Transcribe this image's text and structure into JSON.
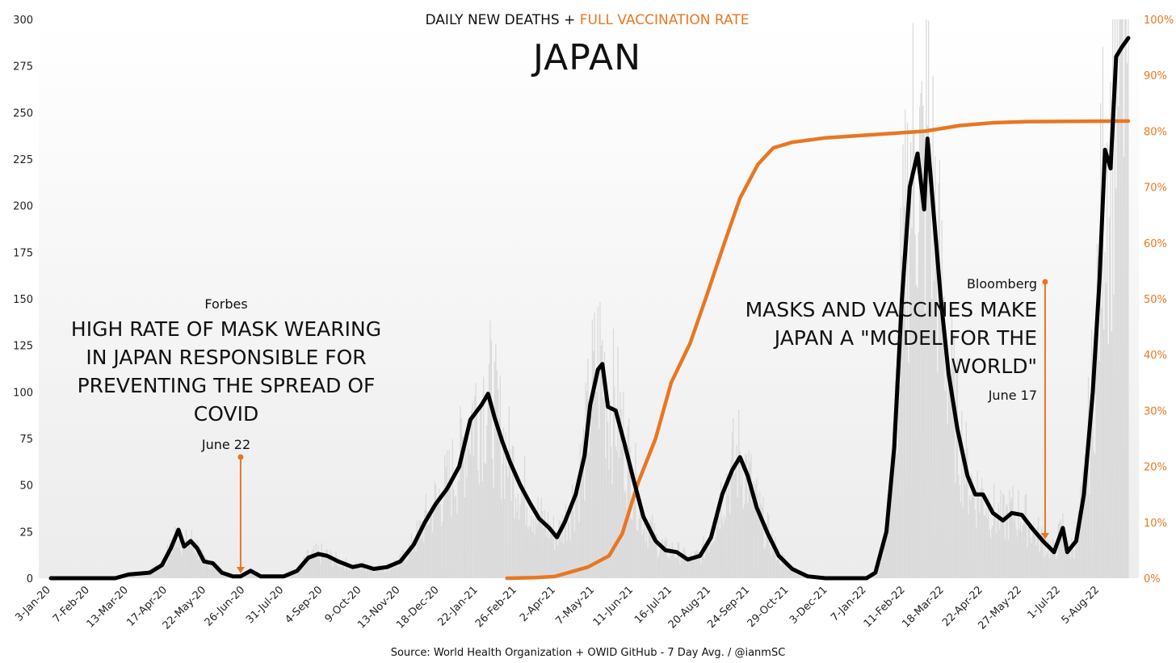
{
  "chart_data": {
    "type": "line",
    "title": "JAPAN",
    "subtitle": {
      "part1": "DAILY NEW DEATHS + ",
      "part2": "FULL VACCINATION RATE"
    },
    "source": "Source: World Health Organization + OWID GitHub - 7 Day Avg. / @ianmSC",
    "colors": {
      "deaths": "#000000",
      "daily_bars": "#d9d9d9",
      "vaccination": "#e87722",
      "annotation_arrow": "#e87722",
      "background_top": "#ffffff",
      "background_bottom": "#ececec"
    },
    "x_axis": {
      "start_date": "2020-01-03",
      "end_date": "2022-08-31",
      "tick_labels": [
        "3-Jan-20",
        "7-Feb-20",
        "13-Mar-20",
        "17-Apr-20",
        "22-May-20",
        "26-Jun-20",
        "31-Jul-20",
        "4-Sep-20",
        "9-Oct-20",
        "13-Nov-20",
        "18-Dec-20",
        "22-Jan-21",
        "26-Feb-21",
        "2-Apr-21",
        "7-May-21",
        "11-Jun-21",
        "16-Jul-21",
        "20-Aug-21",
        "24-Sep-21",
        "29-Oct-21",
        "3-Dec-21",
        "7-Jan-22",
        "11-Feb-22",
        "18-Mar-22",
        "22-Apr-22",
        "27-May-22",
        "1-Jul-22",
        "5-Aug-22"
      ],
      "tick_dates": [
        "2020-01-03",
        "2020-02-07",
        "2020-03-13",
        "2020-04-17",
        "2020-05-22",
        "2020-06-26",
        "2020-07-31",
        "2020-09-04",
        "2020-10-09",
        "2020-11-13",
        "2020-12-18",
        "2021-01-22",
        "2021-02-26",
        "2021-04-02",
        "2021-05-07",
        "2021-06-11",
        "2021-07-16",
        "2021-08-20",
        "2021-09-24",
        "2021-10-29",
        "2021-12-03",
        "2022-01-07",
        "2022-02-11",
        "2022-03-18",
        "2022-04-22",
        "2022-05-27",
        "2022-07-01",
        "2022-08-05"
      ]
    },
    "y_left": {
      "min": 0,
      "max": 300,
      "ticks": [
        "0",
        "25",
        "50",
        "75",
        "100",
        "125",
        "150",
        "175",
        "200",
        "225",
        "250",
        "275",
        "300"
      ]
    },
    "y_right": {
      "min": 0,
      "max": 100,
      "ticks": [
        "0%",
        "10%",
        "20%",
        "30%",
        "40%",
        "50%",
        "60%",
        "70%",
        "80%",
        "90%",
        "100%"
      ]
    },
    "series": [
      {
        "axis": "left",
        "points": [
          [
            "2020-01-03",
            0
          ],
          [
            "2020-03-01",
            0
          ],
          [
            "2020-03-13",
            2
          ],
          [
            "2020-04-01",
            3
          ],
          [
            "2020-04-12",
            7
          ],
          [
            "2020-04-20",
            16
          ],
          [
            "2020-04-27",
            26
          ],
          [
            "2020-05-02",
            17
          ],
          [
            "2020-05-08",
            20
          ],
          [
            "2020-05-14",
            16
          ],
          [
            "2020-05-20",
            9
          ],
          [
            "2020-05-28",
            8
          ],
          [
            "2020-06-05",
            3
          ],
          [
            "2020-06-15",
            1
          ],
          [
            "2020-06-22",
            1
          ],
          [
            "2020-07-01",
            4
          ],
          [
            "2020-07-10",
            1
          ],
          [
            "2020-07-31",
            1
          ],
          [
            "2020-08-12",
            4
          ],
          [
            "2020-08-22",
            11
          ],
          [
            "2020-08-31",
            13
          ],
          [
            "2020-09-08",
            12
          ],
          [
            "2020-09-18",
            9
          ],
          [
            "2020-10-01",
            6
          ],
          [
            "2020-10-09",
            7
          ],
          [
            "2020-10-20",
            5
          ],
          [
            "2020-11-01",
            6
          ],
          [
            "2020-11-13",
            9
          ],
          [
            "2020-11-25",
            18
          ],
          [
            "2020-12-05",
            30
          ],
          [
            "2020-12-15",
            40
          ],
          [
            "2020-12-25",
            48
          ],
          [
            "2021-01-05",
            60
          ],
          [
            "2021-01-15",
            85
          ],
          [
            "2021-01-25",
            93
          ],
          [
            "2021-01-31",
            99
          ],
          [
            "2021-02-06",
            86
          ],
          [
            "2021-02-13",
            73
          ],
          [
            "2021-02-20",
            62
          ],
          [
            "2021-03-01",
            50
          ],
          [
            "2021-03-10",
            40
          ],
          [
            "2021-03-18",
            32
          ],
          [
            "2021-03-27",
            27
          ],
          [
            "2021-04-03",
            22
          ],
          [
            "2021-04-10",
            30
          ],
          [
            "2021-04-20",
            45
          ],
          [
            "2021-04-28",
            66
          ],
          [
            "2021-05-03",
            93
          ],
          [
            "2021-05-10",
            112
          ],
          [
            "2021-05-14",
            115
          ],
          [
            "2021-05-19",
            92
          ],
          [
            "2021-05-26",
            90
          ],
          [
            "2021-06-03",
            72
          ],
          [
            "2021-06-11",
            53
          ],
          [
            "2021-06-20",
            33
          ],
          [
            "2021-07-01",
            20
          ],
          [
            "2021-07-10",
            15
          ],
          [
            "2021-07-20",
            14
          ],
          [
            "2021-07-30",
            10
          ],
          [
            "2021-08-10",
            12
          ],
          [
            "2021-08-20",
            22
          ],
          [
            "2021-08-30",
            45
          ],
          [
            "2021-09-08",
            58
          ],
          [
            "2021-09-15",
            65
          ],
          [
            "2021-09-22",
            55
          ],
          [
            "2021-09-30",
            38
          ],
          [
            "2021-10-10",
            24
          ],
          [
            "2021-10-20",
            12
          ],
          [
            "2021-11-01",
            5
          ],
          [
            "2021-11-15",
            1
          ],
          [
            "2021-12-01",
            0
          ],
          [
            "2022-01-07",
            0
          ],
          [
            "2022-01-15",
            3
          ],
          [
            "2022-01-25",
            25
          ],
          [
            "2022-02-01",
            70
          ],
          [
            "2022-02-08",
            150
          ],
          [
            "2022-02-15",
            210
          ],
          [
            "2022-02-22",
            228
          ],
          [
            "2022-02-28",
            198
          ],
          [
            "2022-03-03",
            236
          ],
          [
            "2022-03-08",
            200
          ],
          [
            "2022-03-15",
            150
          ],
          [
            "2022-03-22",
            110
          ],
          [
            "2022-03-30",
            80
          ],
          [
            "2022-04-08",
            55
          ],
          [
            "2022-04-15",
            45
          ],
          [
            "2022-04-22",
            45
          ],
          [
            "2022-05-01",
            35
          ],
          [
            "2022-05-10",
            31
          ],
          [
            "2022-05-18",
            35
          ],
          [
            "2022-05-27",
            34
          ],
          [
            "2022-06-05",
            27
          ],
          [
            "2022-06-15",
            20
          ],
          [
            "2022-06-25",
            14
          ],
          [
            "2022-07-03",
            27
          ],
          [
            "2022-07-07",
            14
          ],
          [
            "2022-07-15",
            20
          ],
          [
            "2022-07-22",
            45
          ],
          [
            "2022-07-30",
            100
          ],
          [
            "2022-08-05",
            160
          ],
          [
            "2022-08-10",
            230
          ],
          [
            "2022-08-15",
            220
          ],
          [
            "2022-08-20",
            280
          ],
          [
            "2022-08-25",
            285
          ],
          [
            "2022-08-31",
            290
          ]
        ]
      },
      {
        "axis": "right",
        "points": [
          [
            "2021-02-17",
            0
          ],
          [
            "2021-03-15",
            0.1
          ],
          [
            "2021-04-01",
            0.3
          ],
          [
            "2021-05-01",
            2
          ],
          [
            "2021-05-20",
            4
          ],
          [
            "2021-06-01",
            8
          ],
          [
            "2021-06-15",
            17
          ],
          [
            "2021-07-01",
            25
          ],
          [
            "2021-07-15",
            35
          ],
          [
            "2021-08-01",
            42
          ],
          [
            "2021-08-15",
            50
          ],
          [
            "2021-09-01",
            60
          ],
          [
            "2021-09-15",
            68
          ],
          [
            "2021-10-01",
            74
          ],
          [
            "2021-10-15",
            77
          ],
          [
            "2021-11-01",
            78
          ],
          [
            "2021-12-01",
            78.8
          ],
          [
            "2022-01-01",
            79.2
          ],
          [
            "2022-03-01",
            80
          ],
          [
            "2022-04-01",
            81
          ],
          [
            "2022-05-01",
            81.5
          ],
          [
            "2022-06-01",
            81.7
          ],
          [
            "2022-08-31",
            81.8
          ]
        ]
      }
    ],
    "annotations": [
      {
        "source_label": "Forbes",
        "headline_lines": [
          "HIGH RATE OF MASK WEARING",
          "IN JAPAN RESPONSIBLE FOR",
          "PREVENTING THE SPREAD OF",
          "COVID"
        ],
        "date_label": "June 22",
        "arrow_date": "2020-06-22"
      },
      {
        "source_label": "Bloomberg",
        "headline_lines": [
          "MASKS AND VACCINES MAKE",
          "JAPAN A \"MODEL FOR THE",
          "WORLD\""
        ],
        "date_label": "June 17",
        "arrow_date": "2022-06-17"
      }
    ]
  }
}
